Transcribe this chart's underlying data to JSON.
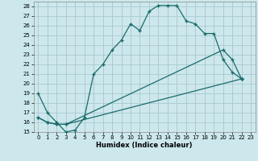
{
  "xlabel": "Humidex (Indice chaleur)",
  "xlim": [
    -0.5,
    23.5
  ],
  "ylim": [
    15,
    28.5
  ],
  "xticks": [
    0,
    1,
    2,
    3,
    4,
    5,
    6,
    7,
    8,
    9,
    10,
    11,
    12,
    13,
    14,
    15,
    16,
    17,
    18,
    19,
    20,
    21,
    22,
    23
  ],
  "yticks": [
    15,
    16,
    17,
    18,
    19,
    20,
    21,
    22,
    23,
    24,
    25,
    26,
    27,
    28
  ],
  "bg_color": "#cce8ec",
  "line_color": "#1a6b6b",
  "curve1_x": [
    0,
    1,
    2,
    3,
    4,
    5,
    6,
    7,
    8,
    9,
    10,
    11,
    12,
    13,
    14,
    15,
    16,
    17,
    18,
    19,
    20,
    21,
    22
  ],
  "curve1_y": [
    19,
    17,
    16,
    15,
    15.2,
    16.5,
    21,
    22,
    23.5,
    24.5,
    26.2,
    25.5,
    27.5,
    28.1,
    28.1,
    28.1,
    26.5,
    26.2,
    25.2,
    25.2,
    22.5,
    21.2,
    20.5
  ],
  "curve2_x": [
    0,
    1,
    2,
    3,
    22
  ],
  "curve2_y": [
    16.5,
    16,
    15.8,
    15.8,
    20.5
  ],
  "curve3_x": [
    0,
    1,
    2,
    3,
    20,
    21,
    22
  ],
  "curve3_y": [
    16.5,
    16,
    15.8,
    15.8,
    23.5,
    22.5,
    20.5
  ],
  "grid_color": "#aaccd4",
  "grid_minor_color": "#c8dfe4",
  "marker": "+",
  "markersize": 3.5,
  "markeredgewidth": 1.0,
  "linewidth": 0.9,
  "tick_labelsize": 5.0,
  "xlabel_fontsize": 6.0
}
